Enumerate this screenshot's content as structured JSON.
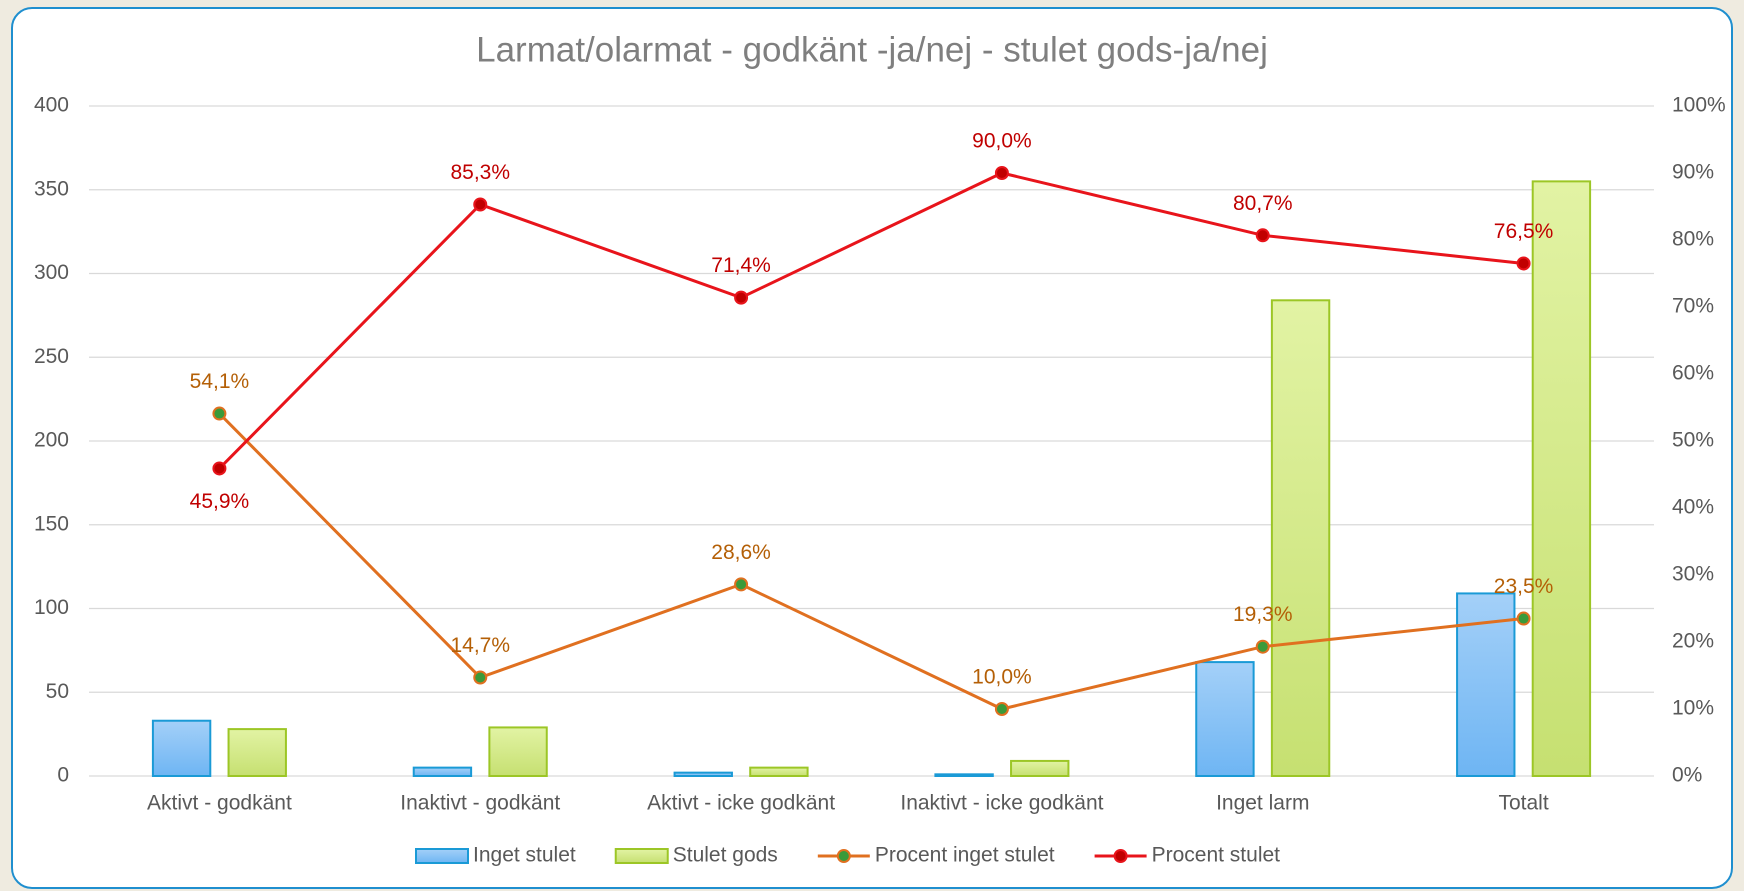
{
  "chart_data": {
    "type": "bar",
    "title": "Larmat/olarmat - godkänt -ja/nej - stulet gods-ja/nej",
    "categories": [
      "Aktivt - godkänt",
      "Inaktivt - godkänt",
      "Aktivt - icke godkänt",
      "Inaktivt - icke godkänt",
      "Inget larm",
      "Totalt"
    ],
    "series": [
      {
        "name": "Inget stulet",
        "type": "bar",
        "color": "#6eb5f3",
        "values": [
          33,
          5,
          2,
          1,
          68,
          109
        ]
      },
      {
        "name": "Stulet gods",
        "type": "bar",
        "color": "#c6e071",
        "values": [
          28,
          29,
          5,
          9,
          284,
          355
        ]
      },
      {
        "name": "Procent inget stulet",
        "type": "line",
        "axis": "y2",
        "color": "#e07020",
        "values": [
          54.1,
          14.7,
          28.6,
          10.0,
          19.3,
          23.5
        ],
        "value_labels": [
          "54,1%",
          "14,7%",
          "28,6%",
          "10,0%",
          "19,3%",
          "23,5%"
        ]
      },
      {
        "name": "Procent stulet",
        "type": "line",
        "axis": "y2",
        "color": "#e8141b",
        "values": [
          45.9,
          85.3,
          71.4,
          90.0,
          80.7,
          76.5
        ],
        "value_labels": [
          "45,9%",
          "85,3%",
          "71,4%",
          "90,0%",
          "80,7%",
          "76,5%"
        ]
      }
    ],
    "ylim": [
      0,
      400
    ],
    "yticks": [
      0,
      50,
      100,
      150,
      200,
      250,
      300,
      350,
      400
    ],
    "y2lim": [
      0,
      100
    ],
    "y2ticks": [
      {
        "value": 0,
        "label": "0%"
      },
      {
        "value": 10,
        "label": "10%"
      },
      {
        "value": 20,
        "label": "20%"
      },
      {
        "value": 30,
        "label": "30%"
      },
      {
        "value": 40,
        "label": "40%"
      },
      {
        "value": 50,
        "label": "50%"
      },
      {
        "value": 60,
        "label": "60%"
      },
      {
        "value": 70,
        "label": "70%"
      },
      {
        "value": 80,
        "label": "80%"
      },
      {
        "value": 90,
        "label": "90%"
      },
      {
        "value": 100,
        "label": "100%"
      }
    ],
    "grid": true,
    "legend": "bottom"
  }
}
